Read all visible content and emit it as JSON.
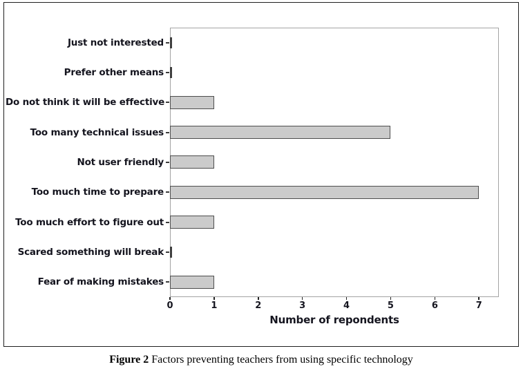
{
  "figure": {
    "caption_prefix": "Figure 2",
    "caption_text": " Factors preventing teachers from using specific technology"
  },
  "chart_data": {
    "type": "bar",
    "orientation": "horizontal",
    "title": "",
    "categories": [
      "Just not interested",
      "Prefer other means",
      "Do not think it will be effective",
      "Too many technical issues",
      "Not user friendly",
      "Too much time to prepare",
      "Too much effort to figure out",
      "Scared something will break",
      "Fear of making mistakes"
    ],
    "values": [
      0,
      0,
      1,
      5,
      1,
      7,
      1,
      0,
      1
    ],
    "xlabel": "Number of repondents",
    "ylabel": "",
    "x_ticks": [
      0,
      1,
      2,
      3,
      4,
      5,
      6,
      7
    ],
    "xlim": [
      0,
      7.45
    ],
    "grid": false,
    "legend_position": "none",
    "colors": {
      "bar_fill": "#cbcbcb",
      "bar_border": "#4d4d4d",
      "plot_border": "#a3a3a3",
      "text": "#14141e"
    }
  }
}
